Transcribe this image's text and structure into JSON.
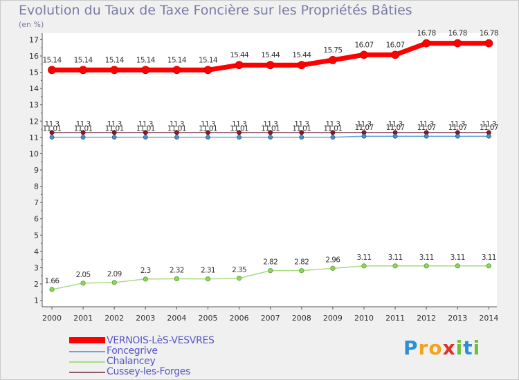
{
  "chart_data": {
    "type": "line",
    "title": "Evolution du Taux de Taxe Foncière sur les Propriétés Bâties",
    "ylabel": "(en %)",
    "xlabel": "",
    "categories": [
      "2000",
      "2001",
      "2002",
      "2003",
      "2004",
      "2005",
      "2006",
      "2007",
      "2008",
      "2009",
      "2010",
      "2011",
      "2012",
      "2013",
      "2014"
    ],
    "ylim": [
      0.6,
      17.4
    ],
    "yticks": [
      "1",
      "2",
      "3",
      "4",
      "5",
      "6",
      "7",
      "8",
      "9",
      "10",
      "11",
      "12",
      "13",
      "14",
      "15",
      "16",
      "17"
    ],
    "grid": false,
    "legend_position": "bottom-left",
    "series": [
      {
        "name": "VERNOIS-LèS-VESVRES",
        "color": "#ff0000",
        "values": [
          15.14,
          15.14,
          15.14,
          15.14,
          15.14,
          15.14,
          15.44,
          15.44,
          15.44,
          15.75,
          16.07,
          16.07,
          16.78,
          16.78,
          16.78
        ],
        "labels": [
          "15.14",
          "15.14",
          "15.14",
          "15.14",
          "15.14",
          "15.14",
          "15.44",
          "15.44",
          "15.44",
          "15.75",
          "16.07",
          "16.07",
          "16.78",
          "16.78",
          "16.78"
        ]
      },
      {
        "name": "Foncegrive",
        "color": "#6aa6d6",
        "values": [
          11.01,
          11.01,
          11.01,
          11.01,
          11.01,
          11.01,
          11.01,
          11.01,
          11.01,
          11.01,
          11.07,
          11.07,
          11.07,
          11.07,
          11.07
        ],
        "labels": [
          "11.01",
          "11.01",
          "11.01",
          "11.01",
          "11.01",
          "11.01",
          "11.01",
          "11.01",
          "11.01",
          "11.01",
          "11.07",
          "11.07",
          "11.07",
          "11.07",
          "11.07"
        ]
      },
      {
        "name": "Chalancey",
        "color": "#a6dc84",
        "values": [
          1.66,
          2.05,
          2.09,
          2.3,
          2.32,
          2.31,
          2.35,
          2.82,
          2.82,
          2.96,
          3.11,
          3.11,
          3.11,
          3.11,
          3.11
        ],
        "labels": [
          "1.66",
          "2.05",
          "2.09",
          "2.3",
          "2.32",
          "2.31",
          "2.35",
          "2.82",
          "2.82",
          "2.96",
          "3.11",
          "3.11",
          "3.11",
          "3.11",
          "3.11"
        ]
      },
      {
        "name": "Cussey-les-Forges",
        "color": "#8a5a68",
        "values": [
          11.3,
          11.3,
          11.3,
          11.3,
          11.3,
          11.3,
          11.3,
          11.3,
          11.3,
          11.3,
          11.3,
          11.3,
          11.3,
          11.3,
          11.3
        ],
        "labels": [
          "11.3",
          "11.3",
          "11.3",
          "11.3",
          "11.3",
          "11.3",
          "11.3",
          "11.3",
          "11.3",
          "11.3",
          "11.3",
          "11.3",
          "11.3",
          "11.3",
          "11.3"
        ]
      }
    ]
  },
  "branding": {
    "logo_letters": [
      "P",
      "r",
      "o",
      "x",
      "i",
      "t",
      "i"
    ],
    "logo_colors": [
      "#2a8fd6",
      "#f2a21c",
      "#f2a21c",
      "#e0302b",
      "#6cbf3c",
      "#2a8fd6",
      "#6cbf3c"
    ]
  }
}
